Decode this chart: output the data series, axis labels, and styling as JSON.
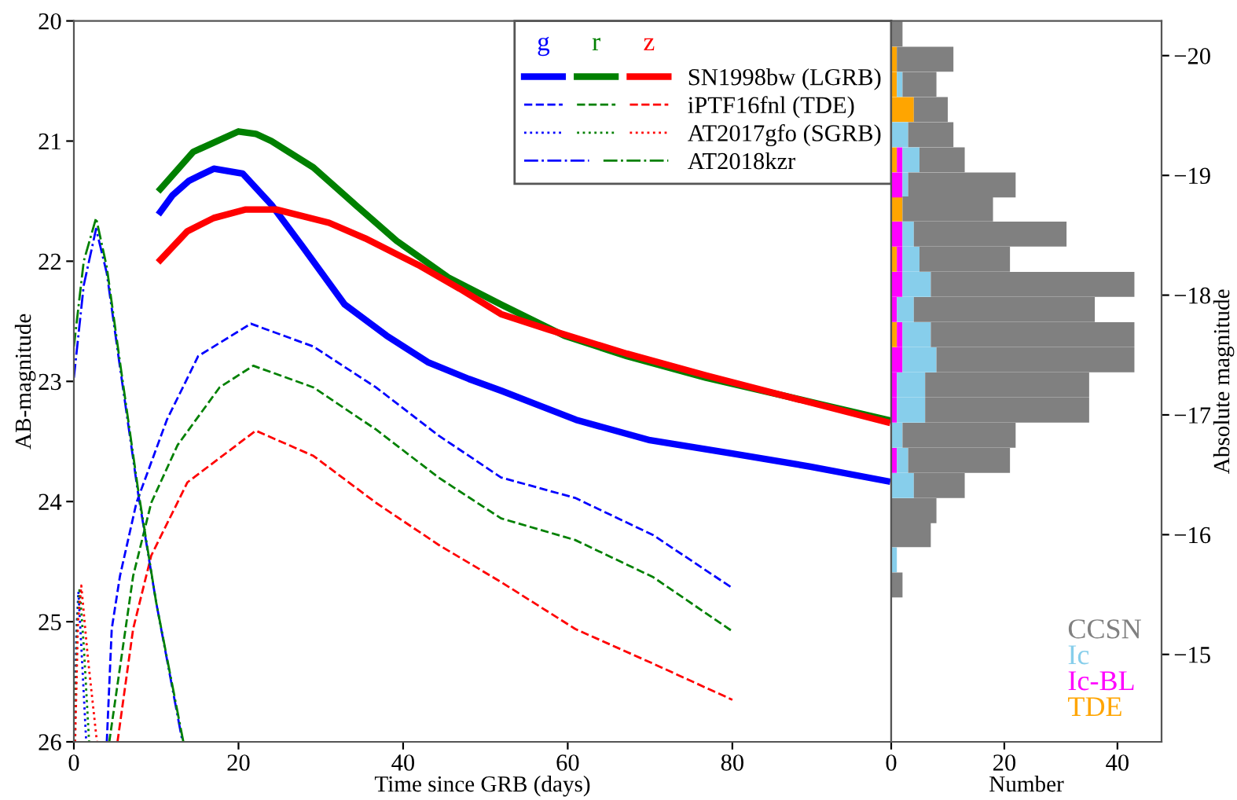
{
  "chart_data": [
    {
      "type": "line",
      "xlabel": "Time since GRB (days)",
      "ylabel": "AB-magnitude",
      "xlim": [
        0,
        99.3
      ],
      "xticks": [
        0,
        20,
        40,
        60,
        80
      ],
      "ylim": [
        26,
        20
      ],
      "yticks": [
        20,
        21,
        22,
        23,
        24,
        25,
        26
      ],
      "legend": "top right",
      "grid": false,
      "annotations": [
        "g",
        "r",
        "z"
      ],
      "series": [
        {
          "color": "#0000ff",
          "line_style": "solid",
          "x": [
            10.5,
            12,
            14,
            17,
            20.5,
            24,
            27.8,
            32.9,
            38,
            43,
            48,
            52,
            61,
            70,
            80,
            89.5,
            98.8
          ],
          "values": [
            21.59,
            21.45,
            21.33,
            21.23,
            21.27,
            21.53,
            21.88,
            22.36,
            22.62,
            22.84,
            22.98,
            23.08,
            23.32,
            23.49,
            23.6,
            23.71,
            23.83
          ]
        },
        {
          "color": "#008000",
          "line_style": "solid",
          "x": [
            10.5,
            14.5,
            20,
            22.1,
            24,
            29.1,
            34.2,
            39.2,
            45.6,
            51.9,
            59.6,
            67.2,
            76.8,
            86.3,
            98.8
          ],
          "values": [
            21.4,
            21.09,
            20.92,
            20.94,
            21.0,
            21.22,
            21.53,
            21.83,
            22.14,
            22.36,
            22.62,
            22.79,
            22.97,
            23.12,
            23.32
          ]
        },
        {
          "name": "SN1998bw (LGRB)",
          "color": "#ff0000",
          "line_style": "solid",
          "x": [
            10.5,
            13.8,
            17,
            20.8,
            24.6,
            31,
            35.4,
            41.8,
            46.9,
            51.9,
            57.7,
            67.2,
            76.8,
            86.3,
            98.8
          ],
          "values": [
            21.99,
            21.75,
            21.64,
            21.57,
            21.57,
            21.68,
            21.81,
            22.03,
            22.23,
            22.44,
            22.57,
            22.77,
            22.95,
            23.12,
            23.34
          ]
        },
        {
          "color": "#0000ff",
          "line_style": "dashed",
          "x": [
            4.0,
            4.6,
            5.6,
            7.6,
            11.3,
            15.1,
            21.5,
            29.1,
            36.7,
            44.3,
            51.9,
            60.9,
            70.4,
            80
          ],
          "values": [
            26,
            25.06,
            24.62,
            24.01,
            23.32,
            22.79,
            22.52,
            22.71,
            23.05,
            23.45,
            23.8,
            23.97,
            24.28,
            24.72
          ]
        },
        {
          "color": "#008000",
          "line_style": "dashed",
          "x": [
            4.3,
            7.2,
            9.4,
            12.6,
            17.7,
            21.8,
            29.1,
            36.7,
            44.3,
            51.9,
            60.9,
            70.4,
            80
          ],
          "values": [
            26,
            24.62,
            24.01,
            23.53,
            23.05,
            22.87,
            23.05,
            23.4,
            23.8,
            24.14,
            24.32,
            24.63,
            25.08
          ]
        },
        {
          "name": "iPTF16fnl (TDE)",
          "color": "#ff0000",
          "line_style": "dashed",
          "x": [
            5.3,
            7.2,
            9.4,
            13.8,
            22.1,
            29.1,
            36.7,
            44.3,
            51.9,
            60.9,
            70.4,
            80
          ],
          "values": [
            26,
            25.06,
            24.45,
            23.84,
            23.41,
            23.62,
            24.01,
            24.36,
            24.67,
            25.06,
            25.35,
            25.65
          ]
        },
        {
          "color": "#0000ff",
          "line_style": "dotted",
          "x": [
            0.1,
            0.3,
            0.55,
            0.9,
            1.5
          ],
          "values": [
            26,
            25.1,
            24.75,
            25.2,
            26
          ]
        },
        {
          "color": "#008000",
          "line_style": "dotted",
          "x": [
            0.1,
            0.4,
            0.7,
            1.2,
            1.85
          ],
          "values": [
            26,
            25.0,
            24.72,
            25.2,
            26
          ]
        },
        {
          "name": "AT2017gfo (SGRB)",
          "color": "#ff0000",
          "line_style": "dotted",
          "x": [
            0.15,
            0.5,
            0.9,
            1.7,
            2.8
          ],
          "values": [
            26,
            25.0,
            24.7,
            25.3,
            26
          ]
        },
        {
          "color": "#0000ff",
          "line_style": "dashdot",
          "x": [
            0,
            1.2,
            2.7,
            4.0,
            5.6,
            7.8,
            10.0,
            13.2
          ],
          "values": [
            22.97,
            22.2,
            21.73,
            22.1,
            22.88,
            23.93,
            24.84,
            26
          ]
        },
        {
          "name": "AT2018kzr",
          "color": "#008000",
          "line_style": "dashdot",
          "x": [
            0,
            1.2,
            2.7,
            4.0,
            5.6,
            7.8,
            10.0,
            13.3
          ],
          "values": [
            22.71,
            22.0,
            21.64,
            22.05,
            22.84,
            23.9,
            24.84,
            26
          ]
        }
      ]
    },
    {
      "type": "bar",
      "orientation": "horizontal",
      "xlabel": "Number",
      "ylabel": "Absolute magnitude",
      "xlim": [
        0,
        47.8
      ],
      "xticks": [
        0,
        20,
        40
      ],
      "ylim": [
        -14.27,
        -20.29
      ],
      "yticks": [
        -20,
        -19,
        -18,
        -17,
        -16,
        -15
      ],
      "legend": "bottom right",
      "grid": false,
      "x": [
        -20.18,
        -19.97,
        -19.76,
        -19.55,
        -19.34,
        -19.13,
        -18.92,
        -18.72,
        -18.51,
        -18.3,
        -18.09,
        -17.88,
        -17.67,
        -17.46,
        -17.25,
        -17.04,
        -16.83,
        -16.62,
        -16.41,
        -16.2,
        -16.0,
        -15.79,
        -15.58
      ],
      "series": [
        {
          "name": "TDE",
          "color": "#ffa500",
          "values": [
            0,
            1,
            1,
            4,
            0,
            1,
            0,
            2,
            0,
            1,
            0,
            0,
            1,
            0,
            0,
            0,
            0,
            0,
            0,
            0,
            0,
            0,
            0
          ]
        },
        {
          "name": "Ic-BL",
          "color": "#ff00ff",
          "values": [
            0,
            0,
            0,
            0,
            0,
            1,
            2,
            0,
            2,
            1,
            2,
            1,
            1,
            2,
            1,
            1,
            0,
            1,
            0,
            0,
            0,
            0,
            0
          ]
        },
        {
          "name": "Ic",
          "color": "#87ceeb",
          "values": [
            0,
            0,
            1,
            0,
            3,
            3,
            1,
            0,
            2,
            3,
            5,
            3,
            5,
            6,
            5,
            5,
            2,
            2,
            4,
            0,
            0,
            1,
            0
          ]
        },
        {
          "name": "CCSN",
          "color": "#808080",
          "values": [
            2,
            10,
            6,
            6,
            8,
            8,
            19,
            16,
            27,
            16,
            36,
            32,
            36,
            35,
            29,
            29,
            20,
            18,
            9,
            8,
            7,
            0,
            2
          ]
        }
      ],
      "stacked": true
    }
  ]
}
